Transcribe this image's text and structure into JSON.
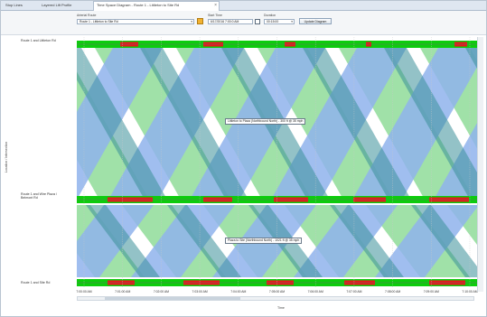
{
  "tabs": [
    {
      "label": "Stop Lines",
      "active": false
    },
    {
      "label": "Layered Lift Profile",
      "active": false
    },
    {
      "label": "Time Space Diagram - Route 1 - Littleton to Site Rd",
      "active": true
    }
  ],
  "toolbar": {
    "route_label": "Arterial Route",
    "route_value": "Route 1 - Littleton to Site Rd",
    "start_label": "Start Time",
    "start_value": "6/17/2016 7:00:0 AM",
    "duration_label": "Duration",
    "duration_value": "00:15:00",
    "update_label": "Update Diagram"
  },
  "y_axis_title": "Location / Intersection",
  "x_axis_title": "Time",
  "signals": [
    {
      "name": "Route 1 and Littleton Rd"
    },
    {
      "name": "Route 1 and Wire Plaza / Belmont Rd"
    },
    {
      "name": "Route 1 and Site Rd"
    }
  ],
  "annotations": [
    {
      "text": "Littleton to Plaza (Northbound North) - 300 ft @ 35 mph"
    },
    {
      "text": "Plaza to Site (Northbound North) - 1021 ft @ 35 mph"
    }
  ],
  "time_ticks": [
    "7:00:00 AM",
    "7:01:00 AM",
    "7:02:00 AM",
    "7:03:00 AM",
    "7:04:00 AM",
    "7:05:00 AM",
    "7:06:00 AM",
    "7:07:00 AM",
    "7:08:00 AM",
    "7:09:00 AM",
    "7:10:00 AM"
  ],
  "colors": {
    "green": "#0dcc0d",
    "red": "#e41919",
    "band_green": "#8fdc99",
    "band_blue": "#8fb3ec",
    "band_overlap": "#3b8f99"
  }
}
